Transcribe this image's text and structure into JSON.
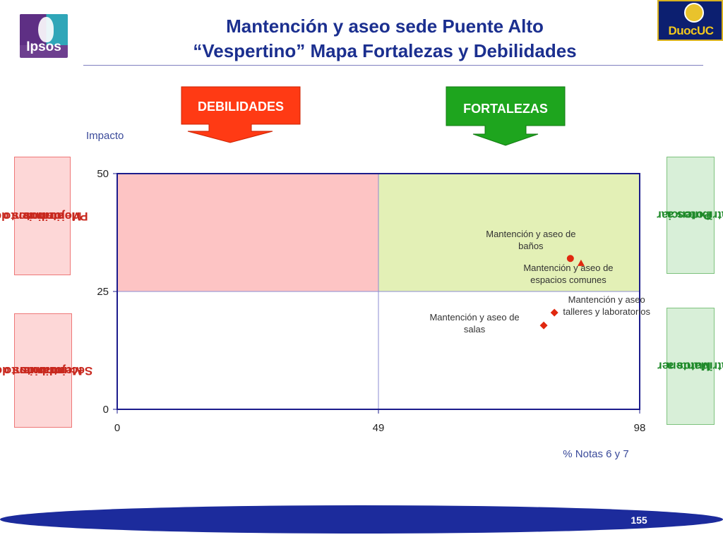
{
  "header": {
    "logo_left_text": "Ipsos",
    "logo_right_text": "DuocUC",
    "title_line1": "Mantención y aseo sede Puente Alto",
    "title_line2": "“Vespertino” Mapa Fortalezas y Debilidades"
  },
  "labels": {
    "debilidades": "DEBILIDADES",
    "fortalezas": "FORTALEZAS"
  },
  "side_boxes": {
    "prioritarios": [
      "atributos de",
      "Mejoramiento",
      "Prioritarios"
    ],
    "secundarios": [
      "atributos de",
      "Mejoramiento",
      "Secundarios"
    ],
    "potenciar": [
      "atributos a",
      "Potenciar"
    ],
    "mantener": [
      "atributos a",
      "Mantener"
    ]
  },
  "colors": {
    "quadrant_weakness": "#fdc4c4",
    "quadrant_strength": "#e3f0b6",
    "arrow_red": "#ff3a14",
    "arrow_green": "#1ea51e",
    "marker": "#e0280f",
    "axis": "#1c1c8c",
    "title": "#1b2f8f"
  },
  "chart_data": {
    "type": "scatter",
    "xlabel": "% Notas 6 y 7",
    "ylabel": "Impacto",
    "xlim": [
      0,
      98
    ],
    "ylim": [
      0,
      50
    ],
    "x_ticks": [
      0,
      49,
      98
    ],
    "y_ticks": [
      0,
      25,
      50
    ],
    "x_divider": 49,
    "y_divider": 25,
    "points": [
      {
        "label_lines": [
          "Mantención y aseo de",
          "baños"
        ],
        "x": 85,
        "y": 32,
        "marker": "circle"
      },
      {
        "label_lines": [
          "Mantención y aseo de",
          "espacios comunes"
        ],
        "x": 87,
        "y": 31,
        "marker": "triangle"
      },
      {
        "label_lines": [
          "Mantención y aseo",
          "talleres y laboratorios"
        ],
        "x": 82,
        "y": 20.5,
        "marker": "diamond"
      },
      {
        "label_lines": [
          "Mantención y aseo de",
          "salas"
        ],
        "x": 80,
        "y": 17.8,
        "marker": "diamond"
      }
    ]
  },
  "footer": {
    "page_number": "155"
  }
}
